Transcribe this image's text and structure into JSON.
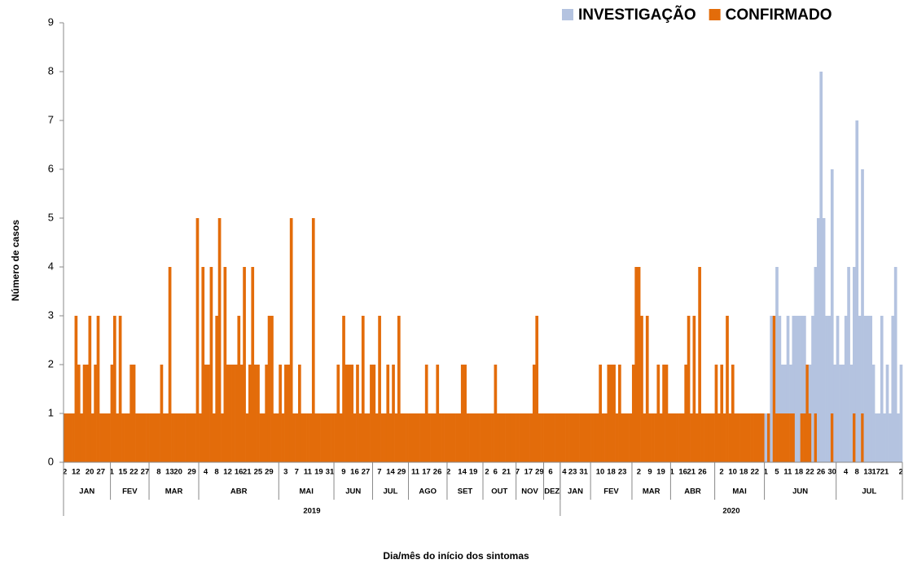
{
  "chart_data": {
    "type": "stacked_bar",
    "y_label": "Número de casos",
    "x_label": "Dia/mês do início dos sintomas",
    "ylim": [
      0,
      9
    ],
    "yticks": [
      0,
      1,
      2,
      3,
      4,
      5,
      6,
      7,
      8,
      9
    ],
    "grid": false,
    "legend": "top-right",
    "years": [
      {
        "label": "2019",
        "months": [
          {
            "label": "JAN",
            "days": [
              "2",
              null,
              null,
              null,
              "12",
              null,
              null,
              null,
              null,
              "20",
              null,
              null,
              null,
              "27",
              null,
              null,
              null
            ]
          },
          {
            "label": "FEV",
            "days": [
              "1",
              null,
              null,
              null,
              "15",
              null,
              null,
              null,
              "22",
              null,
              null,
              null,
              "27",
              null
            ]
          },
          {
            "label": "MAR",
            "days": [
              null,
              null,
              null,
              "8",
              null,
              null,
              null,
              "13",
              null,
              null,
              "20",
              null,
              null,
              null,
              null,
              "29",
              null,
              null
            ]
          },
          {
            "label": "ABR",
            "days": [
              null,
              null,
              "4",
              null,
              null,
              null,
              "8",
              null,
              null,
              null,
              "12",
              null,
              null,
              null,
              "16",
              null,
              null,
              "21",
              null,
              null,
              null,
              "25",
              null,
              null,
              null,
              "29",
              null,
              null,
              null
            ]
          },
          {
            "label": "MAI",
            "days": [
              null,
              null,
              "3",
              null,
              null,
              null,
              "7",
              null,
              null,
              null,
              "11",
              null,
              null,
              null,
              "19",
              null,
              null,
              null,
              "31",
              null
            ]
          },
          {
            "label": "JUN",
            "days": [
              null,
              null,
              null,
              "9",
              null,
              null,
              null,
              "16",
              null,
              null,
              null,
              "27",
              null,
              null
            ]
          },
          {
            "label": "JUL",
            "days": [
              null,
              null,
              "7",
              null,
              null,
              null,
              "14",
              null,
              null,
              null,
              "29",
              null,
              null
            ]
          },
          {
            "label": "AGO",
            "days": [
              null,
              null,
              "11",
              null,
              null,
              null,
              "17",
              null,
              null,
              null,
              "26",
              null,
              null,
              null
            ]
          },
          {
            "label": "SET",
            "days": [
              "2",
              null,
              null,
              null,
              null,
              "14",
              null,
              null,
              null,
              "19",
              null,
              null,
              null
            ]
          },
          {
            "label": "OUT",
            "days": [
              null,
              "2",
              null,
              null,
              "6",
              null,
              null,
              null,
              "21",
              null,
              null,
              null
            ]
          },
          {
            "label": "NOV",
            "days": [
              "7",
              null,
              null,
              null,
              "17",
              null,
              null,
              null,
              "29",
              null
            ]
          },
          {
            "label": "DEZ",
            "days": [
              null,
              null,
              "6",
              null,
              null,
              null
            ]
          }
        ]
      },
      {
        "label": "2020",
        "months": [
          {
            "label": "JAN",
            "days": [
              null,
              "4",
              null,
              null,
              "23",
              null,
              null,
              null,
              "31",
              null,
              null
            ]
          },
          {
            "label": "FEV",
            "days": [
              null,
              null,
              null,
              "10",
              null,
              null,
              null,
              "18",
              null,
              null,
              null,
              "23",
              null,
              null,
              null
            ]
          },
          {
            "label": "MAR",
            "days": [
              null,
              null,
              "2",
              null,
              null,
              null,
              "9",
              null,
              null,
              null,
              "19",
              null,
              null,
              null
            ]
          },
          {
            "label": "ABR",
            "days": [
              "1",
              null,
              null,
              null,
              "16",
              null,
              null,
              "21",
              null,
              null,
              null,
              "26",
              null,
              null,
              null,
              null
            ]
          },
          {
            "label": "MAI",
            "days": [
              null,
              null,
              "2",
              null,
              null,
              null,
              "10",
              null,
              null,
              null,
              "18",
              null,
              null,
              null,
              "22",
              null,
              null,
              null
            ]
          },
          {
            "label": "JUN",
            "days": [
              "1",
              null,
              null,
              null,
              "5",
              null,
              null,
              null,
              "11",
              null,
              null,
              null,
              "18",
              null,
              null,
              null,
              "22",
              null,
              null,
              null,
              "26",
              null,
              null,
              null,
              "30",
              null
            ]
          },
          {
            "label": "JUL",
            "days": [
              null,
              null,
              null,
              "4",
              null,
              null,
              null,
              "8",
              null,
              null,
              null,
              "13",
              null,
              null,
              "17",
              null,
              null,
              "21",
              null,
              null,
              null,
              null,
              null,
              "2"
            ]
          }
        ]
      }
    ],
    "series": [
      {
        "name": "CONFIRMADO",
        "color": "#e36c0a",
        "values": [
          1,
          1,
          1,
          1,
          3,
          2,
          1,
          2,
          2,
          3,
          1,
          2,
          3,
          1,
          1,
          1,
          1,
          2,
          3,
          1,
          3,
          1,
          1,
          1,
          2,
          2,
          1,
          1,
          1,
          1,
          1,
          1,
          1,
          1,
          1,
          2,
          1,
          1,
          4,
          1,
          1,
          1,
          1,
          1,
          1,
          1,
          1,
          1,
          5,
          1,
          4,
          2,
          2,
          4,
          1,
          3,
          5,
          1,
          4,
          2,
          2,
          2,
          2,
          3,
          2,
          4,
          1,
          2,
          4,
          2,
          2,
          1,
          1,
          2,
          3,
          3,
          1,
          1,
          2,
          1,
          2,
          2,
          5,
          1,
          1,
          2,
          1,
          1,
          1,
          1,
          5,
          1,
          1,
          1,
          1,
          1,
          1,
          1,
          1,
          2,
          1,
          3,
          2,
          2,
          2,
          1,
          2,
          1,
          3,
          1,
          1,
          2,
          2,
          1,
          3,
          1,
          1,
          2,
          1,
          2,
          1,
          3,
          1,
          1,
          1,
          1,
          1,
          1,
          1,
          1,
          1,
          2,
          1,
          1,
          1,
          2,
          1,
          1,
          1,
          1,
          1,
          1,
          1,
          1,
          2,
          2,
          1,
          1,
          1,
          1,
          1,
          1,
          1,
          1,
          1,
          1,
          2,
          1,
          1,
          1,
          1,
          1,
          1,
          1,
          1,
          1,
          1,
          1,
          1,
          1,
          2,
          3,
          1,
          1,
          1,
          1,
          1,
          1,
          1,
          1,
          1,
          1,
          1,
          1,
          1,
          1,
          1,
          1,
          1,
          1,
          1,
          1,
          1,
          1,
          2,
          1,
          1,
          2,
          2,
          2,
          1,
          2,
          1,
          1,
          1,
          1,
          2,
          4,
          4,
          3,
          1,
          3,
          1,
          1,
          1,
          2,
          1,
          2,
          2,
          1,
          1,
          1,
          1,
          1,
          1,
          2,
          3,
          1,
          3,
          1,
          4,
          1,
          1,
          1,
          1,
          1,
          2,
          1,
          2,
          1,
          3,
          1,
          2,
          1,
          1,
          1,
          1,
          1,
          1,
          1,
          1,
          1,
          1,
          1,
          0,
          1,
          0,
          3,
          1,
          1,
          1,
          1,
          1,
          1,
          1,
          0,
          0,
          1,
          1,
          2,
          1,
          0,
          1,
          0,
          0,
          0,
          0,
          0,
          1,
          0,
          0,
          0,
          0,
          0,
          0,
          0,
          1,
          0,
          0,
          1,
          0,
          0,
          0,
          0,
          0,
          0,
          0,
          0,
          0,
          0,
          0,
          0,
          0,
          0
        ]
      },
      {
        "name": "INVESTIGAÇÃO",
        "color": "#b4c3e0",
        "values": [
          0,
          0,
          0,
          0,
          0,
          0,
          0,
          0,
          0,
          0,
          0,
          0,
          0,
          0,
          0,
          0,
          0,
          0,
          0,
          0,
          0,
          0,
          0,
          0,
          0,
          0,
          0,
          0,
          0,
          0,
          0,
          0,
          0,
          0,
          0,
          0,
          0,
          0,
          0,
          0,
          0,
          0,
          0,
          0,
          0,
          0,
          0,
          0,
          0,
          0,
          0,
          0,
          0,
          0,
          0,
          0,
          0,
          0,
          0,
          0,
          0,
          0,
          0,
          0,
          0,
          0,
          0,
          0,
          0,
          0,
          0,
          0,
          0,
          0,
          0,
          0,
          0,
          0,
          0,
          0,
          0,
          0,
          0,
          0,
          0,
          0,
          0,
          0,
          0,
          0,
          0,
          0,
          0,
          0,
          0,
          0,
          0,
          0,
          0,
          0,
          0,
          0,
          0,
          0,
          0,
          0,
          0,
          0,
          0,
          0,
          0,
          0,
          0,
          0,
          0,
          0,
          0,
          0,
          0,
          0,
          0,
          0,
          0,
          0,
          0,
          0,
          0,
          0,
          0,
          0,
          0,
          0,
          0,
          0,
          0,
          0,
          0,
          0,
          0,
          0,
          0,
          0,
          0,
          0,
          0,
          0,
          0,
          0,
          0,
          0,
          0,
          0,
          0,
          0,
          0,
          0,
          0,
          0,
          0,
          0,
          0,
          0,
          0,
          0,
          0,
          0,
          0,
          0,
          0,
          0,
          0,
          0,
          0,
          0,
          0,
          0,
          0,
          0,
          0,
          0,
          0,
          0,
          0,
          0,
          0,
          0,
          0,
          0,
          0,
          0,
          0,
          0,
          0,
          0,
          0,
          0,
          0,
          0,
          0,
          0,
          0,
          0,
          0,
          0,
          0,
          0,
          0,
          0,
          0,
          0,
          0,
          0,
          0,
          0,
          0,
          0,
          0,
          0,
          0,
          0,
          0,
          0,
          0,
          0,
          0,
          0,
          0,
          0,
          0,
          0,
          0,
          0,
          0,
          0,
          0,
          0,
          0,
          0,
          0,
          0,
          0,
          0,
          0,
          0,
          0,
          0,
          0,
          0,
          0,
          0,
          0,
          0,
          0,
          0,
          1,
          0,
          3,
          0,
          3,
          2,
          1,
          1,
          2,
          1,
          2,
          3,
          3,
          2,
          2,
          0,
          1,
          3,
          3,
          5,
          8,
          5,
          3,
          3,
          5,
          2,
          3,
          2,
          2,
          3,
          4,
          2,
          3,
          7,
          3,
          5,
          3,
          3,
          3,
          2,
          1,
          1,
          3,
          1,
          2,
          1,
          3,
          4,
          1,
          2
        ]
      }
    ]
  }
}
